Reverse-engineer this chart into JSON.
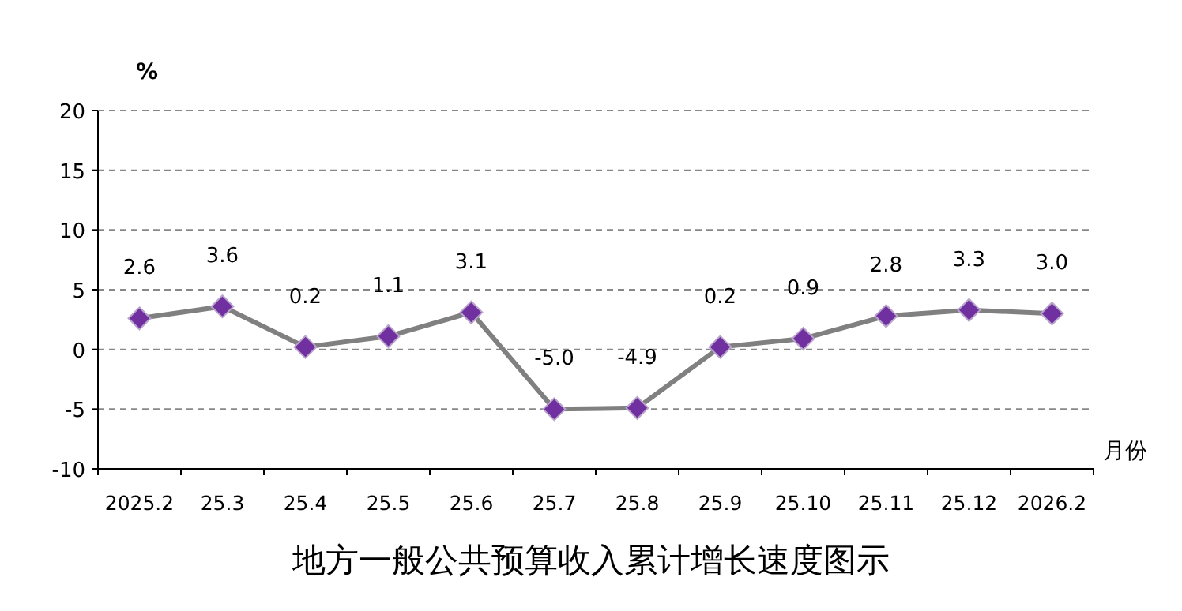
{
  "chart_data": {
    "type": "line",
    "title": "地方一般公共预算收入累计增长速度图示",
    "ylabel": "%",
    "xlabel": "月份",
    "categories": [
      "2025.2",
      "25.3",
      "25.4",
      "25.5",
      "25.6",
      "25.7",
      "25.8",
      "25.9",
      "25.10",
      "25.11",
      "25.12",
      "2026.2"
    ],
    "series": [
      {
        "color": "#7030a0",
        "values": [
          2.6,
          3.6,
          0.2,
          1.1,
          3.1,
          -5.0,
          -4.9,
          0.2,
          0.9,
          2.8,
          3.3,
          3.0
        ],
        "value_labels": [
          "2.6",
          "3.6",
          "0.2",
          "1.1",
          "3.1",
          "-5.0",
          "-4.9",
          "0.2",
          "0.9",
          "2.8",
          "3.3",
          "3.0"
        ]
      }
    ],
    "ylim": [
      -10,
      20
    ],
    "yticks": [
      -10,
      -5,
      0,
      5,
      10,
      15,
      20
    ],
    "grid": "y",
    "marker": "diamond"
  }
}
